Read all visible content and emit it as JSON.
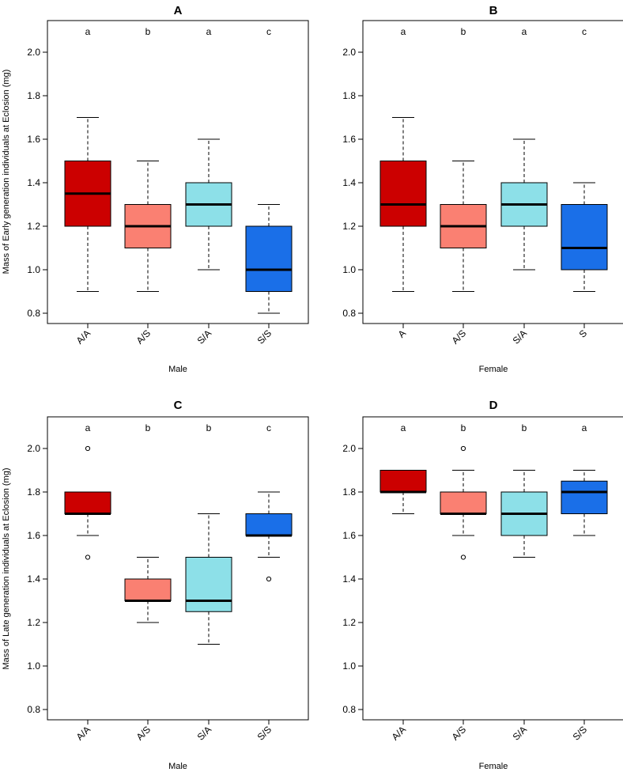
{
  "chart_data": [
    {
      "type": "box",
      "title": "A",
      "xlabel": "Male",
      "ylabel": "Mass of Early generation individuals at Eclosion (mg)",
      "ylim": [
        0.8,
        2.0
      ],
      "yticks": [
        "0.8",
        "1.0",
        "1.2",
        "1.4",
        "1.6",
        "1.8",
        "2.0"
      ],
      "categories": [
        "A/A",
        "A/S",
        "S/A",
        "S/S"
      ],
      "colors": [
        "#cc0000",
        "#fa8072",
        "#8de0e8",
        "#1a6fe8"
      ],
      "groups": [
        "a",
        "b",
        "a",
        "c"
      ],
      "boxes": [
        {
          "whisker_low": 0.9,
          "q1": 1.2,
          "median": 1.35,
          "q3": 1.5,
          "whisker_high": 1.7,
          "outliers": []
        },
        {
          "whisker_low": 0.9,
          "q1": 1.1,
          "median": 1.2,
          "q3": 1.3,
          "whisker_high": 1.5,
          "outliers": []
        },
        {
          "whisker_low": 1.0,
          "q1": 1.2,
          "median": 1.3,
          "q3": 1.4,
          "whisker_high": 1.6,
          "outliers": []
        },
        {
          "whisker_low": 0.8,
          "q1": 0.9,
          "median": 1.0,
          "q3": 1.2,
          "whisker_high": 1.3,
          "outliers": []
        }
      ]
    },
    {
      "type": "box",
      "title": "B",
      "xlabel": "Female",
      "ylabel": "",
      "ylim": [
        0.8,
        2.0
      ],
      "yticks": [
        "0.8",
        "1.0",
        "1.2",
        "1.4",
        "1.6",
        "1.8",
        "2.0"
      ],
      "categories": [
        "A",
        "A/S",
        "S/A",
        "S"
      ],
      "colors": [
        "#cc0000",
        "#fa8072",
        "#8de0e8",
        "#1a6fe8"
      ],
      "groups": [
        "a",
        "b",
        "a",
        "c"
      ],
      "boxes": [
        {
          "whisker_low": 0.9,
          "q1": 1.2,
          "median": 1.3,
          "q3": 1.5,
          "whisker_high": 1.7,
          "outliers": []
        },
        {
          "whisker_low": 0.9,
          "q1": 1.1,
          "median": 1.2,
          "q3": 1.3,
          "whisker_high": 1.5,
          "outliers": []
        },
        {
          "whisker_low": 1.0,
          "q1": 1.2,
          "median": 1.3,
          "q3": 1.4,
          "whisker_high": 1.6,
          "outliers": []
        },
        {
          "whisker_low": 0.9,
          "q1": 1.0,
          "median": 1.1,
          "q3": 1.3,
          "whisker_high": 1.4,
          "outliers": []
        }
      ]
    },
    {
      "type": "box",
      "title": "C",
      "xlabel": "Male",
      "ylabel": "Mass of Late generation individuals at Eclosion (mg)",
      "ylim": [
        0.8,
        2.0
      ],
      "yticks": [
        "0.8",
        "1.0",
        "1.2",
        "1.4",
        "1.6",
        "1.8",
        "2.0"
      ],
      "categories": [
        "A/A",
        "A/S",
        "S/A",
        "S/S"
      ],
      "colors": [
        "#cc0000",
        "#fa8072",
        "#8de0e8",
        "#1a6fe8"
      ],
      "groups": [
        "a",
        "b",
        "b",
        "c"
      ],
      "boxes": [
        {
          "whisker_low": 1.6,
          "q1": 1.7,
          "median": 1.7,
          "q3": 1.8,
          "whisker_high": 1.8,
          "outliers": [
            2.0,
            1.5
          ]
        },
        {
          "whisker_low": 1.2,
          "q1": 1.3,
          "median": 1.3,
          "q3": 1.4,
          "whisker_high": 1.5,
          "outliers": []
        },
        {
          "whisker_low": 1.1,
          "q1": 1.25,
          "median": 1.3,
          "q3": 1.5,
          "whisker_high": 1.7,
          "outliers": []
        },
        {
          "whisker_low": 1.5,
          "q1": 1.6,
          "median": 1.6,
          "q3": 1.7,
          "whisker_high": 1.8,
          "outliers": [
            1.4
          ]
        }
      ]
    },
    {
      "type": "box",
      "title": "D",
      "xlabel": "Female",
      "ylabel": "",
      "ylim": [
        0.8,
        2.0
      ],
      "yticks": [
        "0.8",
        "1.0",
        "1.2",
        "1.4",
        "1.6",
        "1.8",
        "2.0"
      ],
      "categories": [
        "A/A",
        "A/S",
        "S/A",
        "S/S"
      ],
      "colors": [
        "#cc0000",
        "#fa8072",
        "#8de0e8",
        "#1a6fe8"
      ],
      "groups": [
        "a",
        "b",
        "b",
        "a"
      ],
      "boxes": [
        {
          "whisker_low": 1.7,
          "q1": 1.8,
          "median": 1.8,
          "q3": 1.9,
          "whisker_high": 1.9,
          "outliers": []
        },
        {
          "whisker_low": 1.6,
          "q1": 1.7,
          "median": 1.7,
          "q3": 1.8,
          "whisker_high": 1.9,
          "outliers": [
            2.0,
            1.5
          ]
        },
        {
          "whisker_low": 1.5,
          "q1": 1.6,
          "median": 1.7,
          "q3": 1.8,
          "whisker_high": 1.9,
          "outliers": []
        },
        {
          "whisker_low": 1.6,
          "q1": 1.7,
          "median": 1.8,
          "q3": 1.85,
          "whisker_high": 1.9,
          "outliers": []
        }
      ]
    }
  ]
}
